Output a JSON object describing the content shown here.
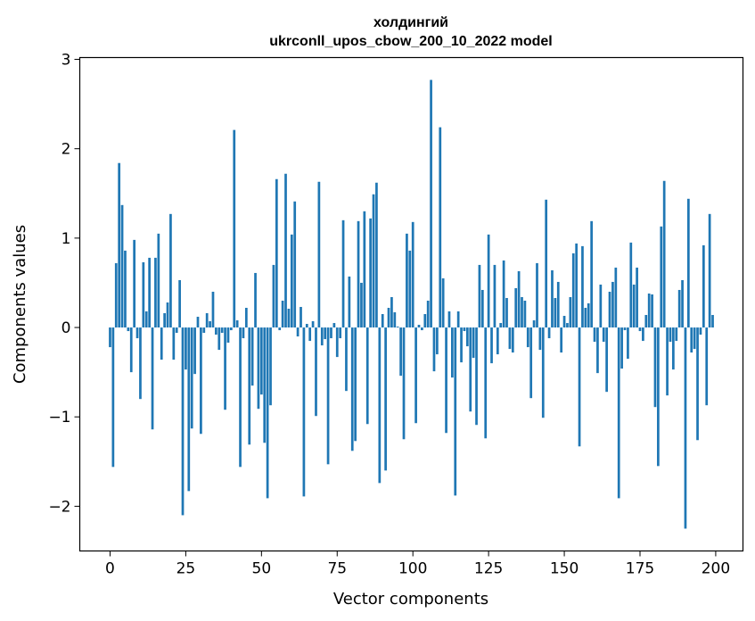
{
  "chart_data": {
    "type": "bar",
    "title_line1": "холдингий",
    "title_line2": "ukrconll_upos_cbow_200_10_2022 model",
    "xlabel": "Vector components",
    "ylabel": "Components values",
    "xlim": [
      -10,
      209
    ],
    "ylim": [
      -2.5,
      3.02
    ],
    "xticks": [
      0,
      25,
      50,
      75,
      100,
      125,
      150,
      175,
      200
    ],
    "xtick_labels": [
      "0",
      "25",
      "50",
      "75",
      "100",
      "125",
      "150",
      "175",
      "200"
    ],
    "yticks": [
      -2,
      -1,
      0,
      1,
      2,
      3
    ],
    "ytick_labels": [
      "−2",
      "−1",
      "0",
      "1",
      "2",
      "3"
    ],
    "bar_color": "#1f77b4",
    "grid": false,
    "x": [
      0,
      1,
      2,
      3,
      4,
      5,
      6,
      7,
      8,
      9,
      10,
      11,
      12,
      13,
      14,
      15,
      16,
      17,
      18,
      19,
      20,
      21,
      22,
      23,
      24,
      25,
      26,
      27,
      28,
      29,
      30,
      31,
      32,
      33,
      34,
      35,
      36,
      37,
      38,
      39,
      40,
      41,
      42,
      43,
      44,
      45,
      46,
      47,
      48,
      49,
      50,
      51,
      52,
      53,
      54,
      55,
      56,
      57,
      58,
      59,
      60,
      61,
      62,
      63,
      64,
      65,
      66,
      67,
      68,
      69,
      70,
      71,
      72,
      73,
      74,
      75,
      76,
      77,
      78,
      79,
      80,
      81,
      82,
      83,
      84,
      85,
      86,
      87,
      88,
      89,
      90,
      91,
      92,
      93,
      94,
      95,
      96,
      97,
      98,
      99,
      100,
      101,
      102,
      103,
      104,
      105,
      106,
      107,
      108,
      109,
      110,
      111,
      112,
      113,
      114,
      115,
      116,
      117,
      118,
      119,
      120,
      121,
      122,
      123,
      124,
      125,
      126,
      127,
      128,
      129,
      130,
      131,
      132,
      133,
      134,
      135,
      136,
      137,
      138,
      139,
      140,
      141,
      142,
      143,
      144,
      145,
      146,
      147,
      148,
      149,
      150,
      151,
      152,
      153,
      154,
      155,
      156,
      157,
      158,
      159,
      160,
      161,
      162,
      163,
      164,
      165,
      166,
      167,
      168,
      169,
      170,
      171,
      172,
      173,
      174,
      175,
      176,
      177,
      178,
      179,
      180,
      181,
      182,
      183,
      184,
      185,
      186,
      187,
      188,
      189,
      190,
      191,
      192,
      193,
      194,
      195,
      196,
      197,
      198,
      199
    ],
    "values": [
      -0.22,
      -1.56,
      0.72,
      1.84,
      1.37,
      0.86,
      -0.04,
      -0.5,
      0.98,
      -0.12,
      -0.8,
      0.73,
      0.18,
      0.78,
      -1.14,
      0.78,
      1.05,
      -0.36,
      0.16,
      0.28,
      1.27,
      -0.36,
      -0.06,
      0.53,
      -2.1,
      -0.47,
      -1.83,
      -1.13,
      -0.52,
      0.12,
      -1.19,
      -0.06,
      0.16,
      0.07,
      0.4,
      -0.08,
      -0.25,
      -0.06,
      -0.92,
      -0.17,
      -0.03,
      2.21,
      0.08,
      -1.56,
      -0.12,
      0.22,
      -1.31,
      -0.65,
      0.61,
      -0.91,
      -0.75,
      -1.29,
      -1.91,
      -0.87,
      0.7,
      1.66,
      -0.03,
      0.3,
      1.72,
      0.21,
      1.04,
      1.41,
      -0.1,
      0.23,
      -1.89,
      0.04,
      -0.15,
      0.07,
      -0.99,
      1.63,
      -0.2,
      -0.13,
      -1.53,
      -0.12,
      0.05,
      -0.33,
      -0.12,
      1.2,
      -0.71,
      0.57,
      -1.38,
      -1.27,
      1.19,
      0.5,
      1.3,
      -1.08,
      1.22,
      1.49,
      1.62,
      -1.74,
      0.15,
      -1.6,
      0.22,
      0.34,
      0.17,
      0.01,
      -0.54,
      -1.25,
      1.05,
      0.86,
      1.18,
      -1.07,
      0.03,
      -0.03,
      0.15,
      0.3,
      2.77,
      -0.49,
      -0.3,
      2.24,
      0.55,
      -1.18,
      0.18,
      -0.56,
      -1.88,
      0.18,
      -0.39,
      -0.04,
      -0.21,
      -0.94,
      -0.34,
      -1.09,
      0.7,
      0.42,
      -1.24,
      1.04,
      -0.4,
      0.7,
      -0.3,
      0.05,
      0.75,
      0.33,
      -0.24,
      -0.28,
      0.44,
      0.63,
      0.34,
      0.3,
      -0.22,
      -0.79,
      0.08,
      0.72,
      -0.25,
      -1.01,
      1.43,
      -0.12,
      0.64,
      0.33,
      0.51,
      -0.28,
      0.13,
      0.05,
      0.34,
      0.83,
      0.94,
      -1.33,
      0.91,
      0.22,
      0.27,
      1.19,
      -0.16,
      -0.51,
      0.48,
      -0.16,
      -0.72,
      0.4,
      0.51,
      0.67,
      -1.91,
      -0.46,
      -0.03,
      -0.35,
      0.95,
      0.48,
      0.67,
      -0.04,
      -0.15,
      0.14,
      0.38,
      0.37,
      -0.89,
      -1.55,
      1.13,
      1.64,
      -0.76,
      -0.16,
      -0.47,
      -0.15,
      0.42,
      0.53,
      -2.25,
      1.44,
      -0.28,
      -0.24,
      -1.26,
      -0.08,
      0.92,
      -0.87,
      1.27,
      0.14
    ]
  }
}
